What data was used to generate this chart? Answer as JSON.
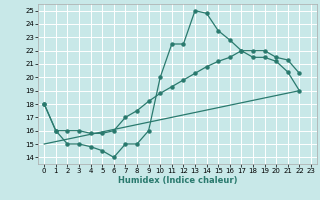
{
  "background_color": "#c8e8e8",
  "grid_color": "#ffffff",
  "line_color": "#2a7a6e",
  "xlabel": "Humidex (Indice chaleur)",
  "xlim": [
    -0.5,
    23.5
  ],
  "ylim": [
    13.5,
    25.5
  ],
  "yticks": [
    14,
    15,
    16,
    17,
    18,
    19,
    20,
    21,
    22,
    23,
    24,
    25
  ],
  "xticks": [
    0,
    1,
    2,
    3,
    4,
    5,
    6,
    7,
    8,
    9,
    10,
    11,
    12,
    13,
    14,
    15,
    16,
    17,
    18,
    19,
    20,
    21,
    22,
    23
  ],
  "line1_x": [
    0,
    1,
    2,
    3,
    4,
    5,
    6,
    7,
    8,
    9,
    10,
    11,
    12,
    13,
    14,
    15,
    16,
    17,
    18,
    19,
    20,
    21,
    22
  ],
  "line1_y": [
    18,
    16,
    15,
    15,
    14.8,
    14.5,
    14,
    15,
    15,
    16,
    20,
    22.5,
    22.5,
    25,
    24.8,
    23.5,
    22.8,
    22,
    21.5,
    21.5,
    21.2,
    20.4,
    19
  ],
  "line2_x": [
    0,
    1,
    2,
    3,
    4,
    5,
    6,
    7,
    8,
    9,
    10,
    11,
    12,
    13,
    14,
    15,
    16,
    17,
    18,
    19,
    20,
    21,
    22
  ],
  "line2_y": [
    18,
    16,
    16,
    16,
    15.8,
    15.8,
    16,
    17,
    17.5,
    18.2,
    18.8,
    19.3,
    19.8,
    20.3,
    20.8,
    21.2,
    21.5,
    22,
    22,
    22,
    21.5,
    21.3,
    20.3
  ],
  "line3_x": [
    0,
    22
  ],
  "line3_y": [
    15,
    19
  ]
}
